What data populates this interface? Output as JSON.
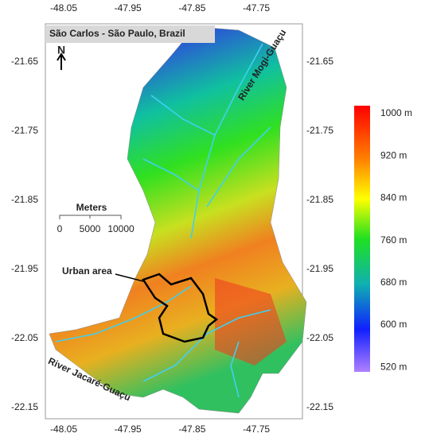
{
  "title": "São Carlos - São Paulo, Brazil",
  "north": "N",
  "longitude_ticks": [
    "-48.05",
    "-47.95",
    "-47.85",
    "-47.75"
  ],
  "latitude_ticks": [
    "-21.65",
    "-21.75",
    "-21.85",
    "-21.95",
    "-22.05",
    "-22.15"
  ],
  "scale_bar": {
    "title": "Meters",
    "labels": [
      "0",
      "5000",
      "10000"
    ]
  },
  "labels": {
    "river_north": "River Mogi-Guaçu",
    "river_south": "River Jacaré-Guaçu",
    "urban_area": "Urban area"
  },
  "legend": {
    "labels": [
      "1000 m",
      "920 m",
      "840 m",
      "760 m",
      "680 m",
      "600 m",
      "520 m"
    ]
  }
}
